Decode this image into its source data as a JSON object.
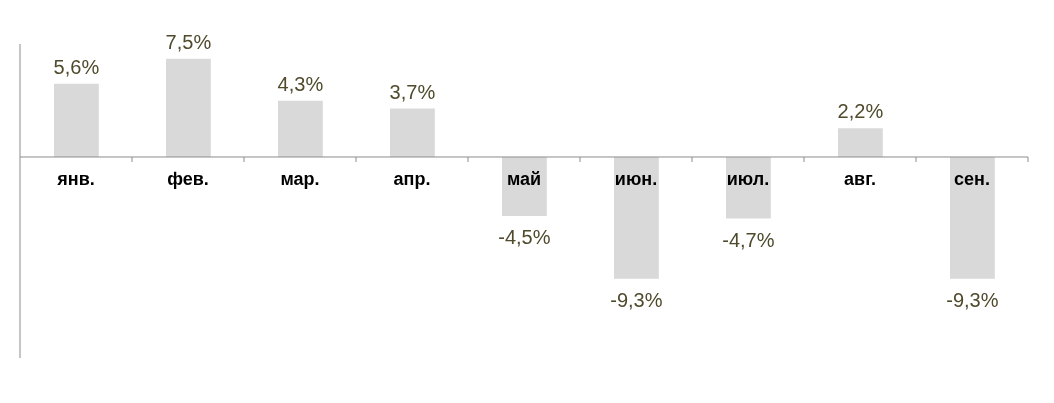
{
  "chart_data": {
    "type": "bar",
    "categories": [
      "янв.",
      "фев.",
      "мар.",
      "апр.",
      "май",
      "июн.",
      "июл.",
      "авг.",
      "сен."
    ],
    "values": [
      5.6,
      7.5,
      4.3,
      3.7,
      -4.5,
      -9.3,
      -4.7,
      2.2,
      -9.3
    ],
    "value_labels": [
      "5,6%",
      "7,5%",
      "4,3%",
      "3,7%",
      "-4,5%",
      "-9,3%",
      "-4,7%",
      "2,2%",
      "-9,3%"
    ],
    "color": "#d9d9d9",
    "tick_labels": "x"
  }
}
